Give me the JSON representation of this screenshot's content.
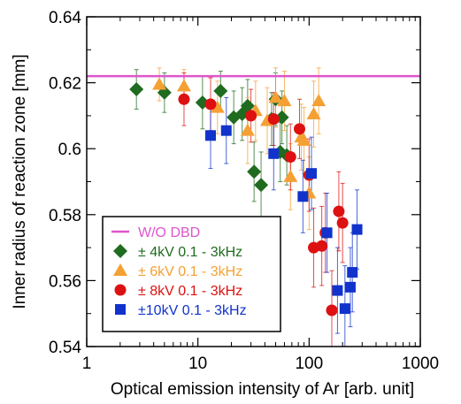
{
  "chart_data": {
    "type": "scatter",
    "xlabel": "Optical emission intensity of Ar [arb. unit]",
    "ylabel": "Inner radius of reaction zone [mm]",
    "xscale": "log",
    "xlim": [
      1,
      1000
    ],
    "ylim": [
      0.54,
      0.64
    ],
    "x_ticks": [
      1,
      10,
      100,
      1000
    ],
    "x_tick_labels": [
      "1",
      "10",
      "100",
      "1000"
    ],
    "y_ticks": [
      0.54,
      0.56,
      0.58,
      0.6,
      0.62,
      0.64
    ],
    "y_tick_labels": [
      "0.54",
      "0.56",
      "0.58",
      "0.6",
      "0.62",
      "0.64"
    ],
    "grid": false,
    "legend_position": "bottom-left",
    "reference_line": {
      "name": "W/O DBD",
      "y": 0.622,
      "color": "#dd55cc"
    },
    "series": [
      {
        "name": "± 4kV 0.1 - 3kHz",
        "marker": "diamond",
        "color": "#1f6b1f",
        "points": [
          {
            "x": 2.8,
            "y": 0.618,
            "err": 0.006
          },
          {
            "x": 5.0,
            "y": 0.617,
            "err": 0.006
          },
          {
            "x": 11,
            "y": 0.614,
            "err": 0.008
          },
          {
            "x": 16,
            "y": 0.6175,
            "err": 0.006
          },
          {
            "x": 21,
            "y": 0.6095,
            "err": 0.008
          },
          {
            "x": 25,
            "y": 0.6105,
            "err": 0.008
          },
          {
            "x": 28,
            "y": 0.613,
            "err": 0.008
          },
          {
            "x": 32,
            "y": 0.593,
            "err": 0.009
          },
          {
            "x": 37,
            "y": 0.589,
            "err": 0.01
          },
          {
            "x": 46,
            "y": 0.609,
            "err": 0.008
          },
          {
            "x": 50,
            "y": 0.615,
            "err": 0.008
          },
          {
            "x": 55,
            "y": 0.599,
            "err": 0.009
          },
          {
            "x": 57,
            "y": 0.6095,
            "err": 0.008
          },
          {
            "x": 63,
            "y": 0.598,
            "err": 0.009
          }
        ]
      },
      {
        "name": "± 6kV 0.1 - 3kHz",
        "marker": "triangle",
        "color": "#f5a033",
        "points": [
          {
            "x": 4.5,
            "y": 0.6195,
            "err": 0.005
          },
          {
            "x": 7.5,
            "y": 0.619,
            "err": 0.005
          },
          {
            "x": 15,
            "y": 0.6125,
            "err": 0.008
          },
          {
            "x": 28,
            "y": 0.6055,
            "err": 0.01
          },
          {
            "x": 33,
            "y": 0.6115,
            "err": 0.009
          },
          {
            "x": 42,
            "y": 0.6085,
            "err": 0.01
          },
          {
            "x": 50,
            "y": 0.6155,
            "err": 0.009
          },
          {
            "x": 60,
            "y": 0.6145,
            "err": 0.009
          },
          {
            "x": 68,
            "y": 0.5915,
            "err": 0.01
          },
          {
            "x": 85,
            "y": 0.6035,
            "err": 0.01
          },
          {
            "x": 90,
            "y": 0.6025,
            "err": 0.01
          },
          {
            "x": 100,
            "y": 0.5865,
            "err": 0.011
          },
          {
            "x": 110,
            "y": 0.6105,
            "err": 0.01
          },
          {
            "x": 122,
            "y": 0.6145,
            "err": 0.01
          }
        ]
      },
      {
        "name": "± 8kV 0.1 - 3kHz",
        "marker": "circle",
        "color": "#dd1111",
        "points": [
          {
            "x": 7.5,
            "y": 0.615,
            "err": 0.008
          },
          {
            "x": 13,
            "y": 0.6135,
            "err": 0.008
          },
          {
            "x": 30,
            "y": 0.61,
            "err": 0.008
          },
          {
            "x": 48,
            "y": 0.609,
            "err": 0.008
          },
          {
            "x": 68,
            "y": 0.5975,
            "err": 0.01
          },
          {
            "x": 82,
            "y": 0.606,
            "err": 0.009
          },
          {
            "x": 100,
            "y": 0.592,
            "err": 0.011
          },
          {
            "x": 110,
            "y": 0.57,
            "err": 0.012
          },
          {
            "x": 130,
            "y": 0.5705,
            "err": 0.012
          },
          {
            "x": 140,
            "y": 0.5745,
            "err": 0.012
          },
          {
            "x": 160,
            "y": 0.551,
            "err": 0.012
          },
          {
            "x": 185,
            "y": 0.581,
            "err": 0.012
          },
          {
            "x": 200,
            "y": 0.5775,
            "err": 0.012
          }
        ]
      },
      {
        "name": "±10kV 0.1 - 3kHz",
        "marker": "square",
        "color": "#1133cc",
        "points": [
          {
            "x": 13,
            "y": 0.604,
            "err": 0.01
          },
          {
            "x": 18,
            "y": 0.6055,
            "err": 0.01
          },
          {
            "x": 48,
            "y": 0.5985,
            "err": 0.011
          },
          {
            "x": 88,
            "y": 0.5855,
            "err": 0.011
          },
          {
            "x": 105,
            "y": 0.5925,
            "err": 0.011
          },
          {
            "x": 145,
            "y": 0.5745,
            "err": 0.012
          },
          {
            "x": 180,
            "y": 0.557,
            "err": 0.013
          },
          {
            "x": 210,
            "y": 0.5515,
            "err": 0.013
          },
          {
            "x": 235,
            "y": 0.558,
            "err": 0.012
          },
          {
            "x": 245,
            "y": 0.5625,
            "err": 0.012
          },
          {
            "x": 270,
            "y": 0.5755,
            "err": 0.012
          }
        ]
      }
    ]
  }
}
